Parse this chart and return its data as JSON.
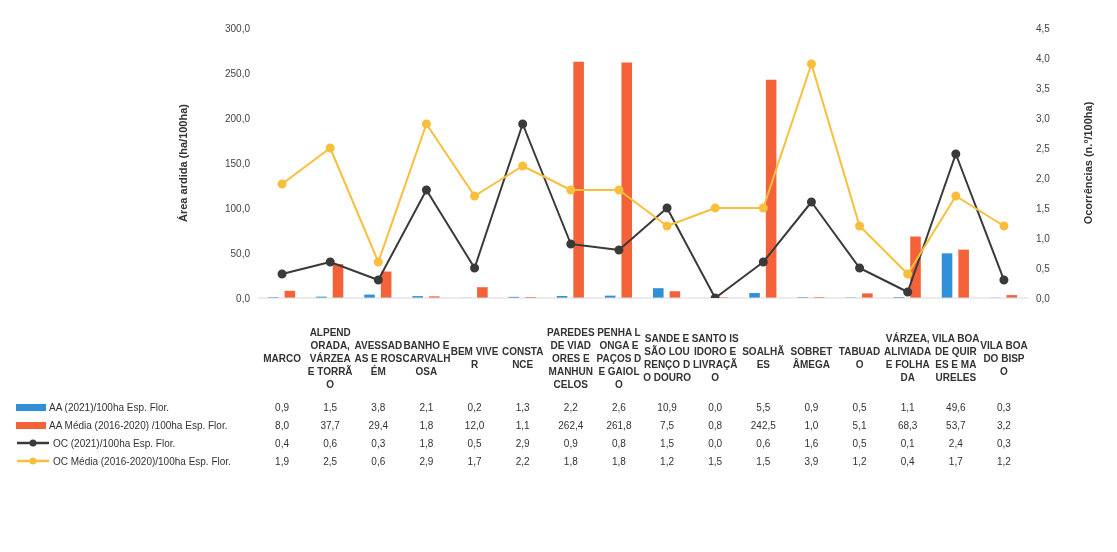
{
  "chart_data": {
    "type": "bar",
    "ylabel": "Área ardida (ha/100ha)",
    "y2label": "Ocorrências (n.º/100ha)",
    "categories": [
      "MARCO",
      "ALPENDORADA, VÁRZEA E TORRÃO",
      "AVESSADAS E ROSÉM",
      "BANHO E CARVALHOSA",
      "BEM VIVER",
      "CONSTANCE",
      "PAREDES DE VIADORES E MANHUNCELOS",
      "PENHA LONGA E PAÇOS DE GAIOLO",
      "SANDE E SÃO LOURENÇO DO DOURO",
      "SANTO ISIDORO E LIVRAÇÃO",
      "SOALHÃES",
      "SOBRETÂMEGA",
      "TABUADO",
      "VÁRZEA, ALIVIADA E FOLHADA",
      "VILA BOA DE QUIRES E MAURELES",
      "VILA BOA DO BISPO"
    ],
    "series": [
      {
        "name": "AA (2021)/100ha Esp. Flor.",
        "color": "#2f8fd8",
        "values": [
          0.9,
          1.5,
          3.8,
          2.1,
          0.2,
          1.3,
          2.2,
          2.6,
          10.9,
          0.0,
          5.5,
          0.9,
          0.5,
          1.1,
          49.6,
          0.3
        ],
        "value_labels": [
          "0,9",
          "1,5",
          "3,8",
          "2,1",
          "0,2",
          "1,3",
          "2,2",
          "2,6",
          "10,9",
          "0,0",
          "5,5",
          "0,9",
          "0,5",
          "1,1",
          "49,6",
          "0,3"
        ]
      },
      {
        "name": "AA Média (2016-2020) /100ha Esp. Flor.",
        "color": "#f4623a",
        "values": [
          8.0,
          37.7,
          29.4,
          1.8,
          12.0,
          1.1,
          262.4,
          261.8,
          7.5,
          0.8,
          242.5,
          1.0,
          5.1,
          68.3,
          53.7,
          3.2
        ],
        "value_labels": [
          "8,0",
          "37,7",
          "29,4",
          "1,8",
          "12,0",
          "1,1",
          "262,4",
          "261,8",
          "7,5",
          "0,8",
          "242,5",
          "1,0",
          "5,1",
          "68,3",
          "53,7",
          "3,2"
        ]
      },
      {
        "name": "OC (2021)/100ha Esp. Flor.",
        "type": "line",
        "axis": "y2",
        "color": "#3a3a3a",
        "values": [
          0.4,
          0.6,
          0.3,
          1.8,
          0.5,
          2.9,
          0.9,
          0.8,
          1.5,
          0.0,
          0.6,
          1.6,
          0.5,
          0.1,
          2.4,
          0.3
        ],
        "value_labels": [
          "0,4",
          "0,6",
          "0,3",
          "1,8",
          "0,5",
          "2,9",
          "0,9",
          "0,8",
          "1,5",
          "0,0",
          "0,6",
          "1,6",
          "0,5",
          "0,1",
          "2,4",
          "0,3"
        ]
      },
      {
        "name": "OC Média (2016-2020)/100ha Esp. Flor.",
        "type": "line",
        "axis": "y2",
        "color": "#f7bf3c",
        "values": [
          1.9,
          2.5,
          0.6,
          2.9,
          1.7,
          2.2,
          1.8,
          1.8,
          1.2,
          1.5,
          1.5,
          3.9,
          1.2,
          0.4,
          1.7,
          1.2
        ],
        "value_labels": [
          "1,9",
          "2,5",
          "0,6",
          "2,9",
          "1,7",
          "2,2",
          "1,8",
          "1,8",
          "1,2",
          "1,5",
          "1,5",
          "3,9",
          "1,2",
          "0,4",
          "1,7",
          "1,2"
        ]
      }
    ],
    "ylim": [
      0,
      300
    ],
    "yticks": [
      {
        "value": 0,
        "label": "0,0"
      },
      {
        "value": 50,
        "label": "50,0"
      },
      {
        "value": 100,
        "label": "100,0"
      },
      {
        "value": 150,
        "label": "150,0"
      },
      {
        "value": 200,
        "label": "200,0"
      },
      {
        "value": 250,
        "label": "250,0"
      },
      {
        "value": 300,
        "label": "300,0"
      }
    ],
    "y2lim": [
      0,
      4.5
    ],
    "y2ticks": [
      {
        "value": 0,
        "label": "0,0"
      },
      {
        "value": 0.5,
        "label": "0,5"
      },
      {
        "value": 1,
        "label": "1,0"
      },
      {
        "value": 1.5,
        "label": "1,5"
      },
      {
        "value": 2,
        "label": "2,0"
      },
      {
        "value": 2.5,
        "label": "2,5"
      },
      {
        "value": 3,
        "label": "3,0"
      },
      {
        "value": 3.5,
        "label": "3,5"
      },
      {
        "value": 4,
        "label": "4,0"
      },
      {
        "value": 4.5,
        "label": "4,5"
      }
    ],
    "grid": false,
    "legend": "bottom",
    "marker": "circle"
  }
}
